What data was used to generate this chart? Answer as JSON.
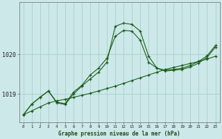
{
  "bg_color": "#cce8e8",
  "grid_color": "#aacece",
  "line_color": "#1a5c1a",
  "yticks": [
    1019,
    1020
  ],
  "ylim": [
    1018.3,
    1021.3
  ],
  "xlim": [
    -0.5,
    23.5
  ],
  "hours": [
    0,
    1,
    2,
    3,
    4,
    5,
    6,
    7,
    8,
    9,
    10,
    11,
    12,
    13,
    14,
    15,
    16,
    17,
    18,
    19,
    20,
    21,
    22,
    23
  ],
  "line1_straight": [
    1018.48,
    1018.58,
    1018.68,
    1018.78,
    1018.83,
    1018.87,
    1018.92,
    1018.97,
    1019.02,
    1019.08,
    1019.14,
    1019.2,
    1019.27,
    1019.34,
    1019.41,
    1019.48,
    1019.55,
    1019.62,
    1019.67,
    1019.72,
    1019.77,
    1019.82,
    1019.88,
    1019.95
  ],
  "line2_mid": [
    1018.48,
    1018.75,
    1018.92,
    1019.08,
    1018.8,
    1018.76,
    1019.05,
    1019.22,
    1019.48,
    1019.65,
    1019.9,
    1020.45,
    1020.6,
    1020.58,
    1020.35,
    1019.8,
    1019.65,
    1019.6,
    1019.62,
    1019.65,
    1019.72,
    1019.82,
    1019.96,
    1020.22
  ],
  "line3_top": [
    1018.48,
    1018.75,
    1018.92,
    1019.08,
    1018.78,
    1018.74,
    1019.0,
    1019.2,
    1019.38,
    1019.55,
    1019.8,
    1020.7,
    1020.78,
    1020.75,
    1020.58,
    1019.95,
    1019.65,
    1019.58,
    1019.6,
    1019.62,
    1019.68,
    1019.78,
    1019.92,
    1020.18
  ],
  "xlabel": "Graphe pression niveau de la mer (hPa)"
}
